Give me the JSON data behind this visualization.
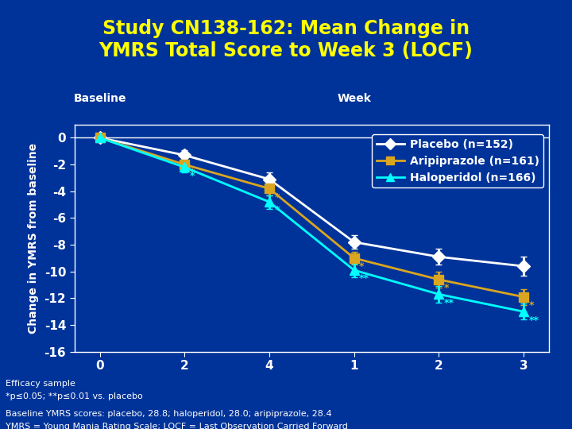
{
  "title": "Study CN138-162: Mean Change in\nYMRS Total Score to Week 3 (LOCF)",
  "title_color": "#FFFF00",
  "background_color": "#003399",
  "plot_bg_color": "#003399",
  "ylabel": "Change in YMRS from baseline",
  "ylabel_color": "#FFFFFF",
  "x_positions": [
    0,
    1,
    2,
    3,
    4,
    5
  ],
  "x_labels": [
    "0",
    "2",
    "4",
    "1",
    "2",
    "3"
  ],
  "placebo_y": [
    0,
    -1.3,
    -3.1,
    -7.8,
    -8.9,
    -9.6
  ],
  "placebo_err": [
    0,
    0.4,
    0.5,
    0.5,
    0.6,
    0.7
  ],
  "aripiprazole_y": [
    0,
    -2.0,
    -3.8,
    -9.0,
    -10.6,
    -11.9
  ],
  "aripiprazole_err": [
    0,
    0.4,
    0.5,
    0.5,
    0.6,
    0.6
  ],
  "haloperidol_y": [
    0,
    -2.2,
    -4.8,
    -9.9,
    -11.7,
    -13.0
  ],
  "haloperidol_err": [
    0,
    0.4,
    0.5,
    0.5,
    0.6,
    0.6
  ],
  "placebo_color": "#FFFFFF",
  "aripiprazole_color": "#DAA520",
  "haloperidol_color": "#00FFFF",
  "ylim": [
    -16,
    1
  ],
  "yticks": [
    0,
    -2,
    -4,
    -6,
    -8,
    -10,
    -12,
    -14,
    -16
  ],
  "legend_labels": [
    "Placebo (n=152)",
    "Aripiprazole (n=161)",
    "Haloperidol (n=166)"
  ],
  "footnote1": "Efficacy sample",
  "footnote2": "*p≤0.05; **p≤0.01 vs. placebo",
  "footnote3": "Baseline YMRS scores: placebo, 28.8; haloperidol, 28.0; aripiprazole, 28.4",
  "footnote4": "YMRS = Young Mania Rating Scale; LOCF = Last Observation Carried Forward",
  "double_star": [
    3,
    4,
    5
  ],
  "single_star": [
    1,
    2
  ],
  "xlim": [
    -0.3,
    5.3
  ],
  "baseline_label": "Baseline",
  "week_label": "Week"
}
